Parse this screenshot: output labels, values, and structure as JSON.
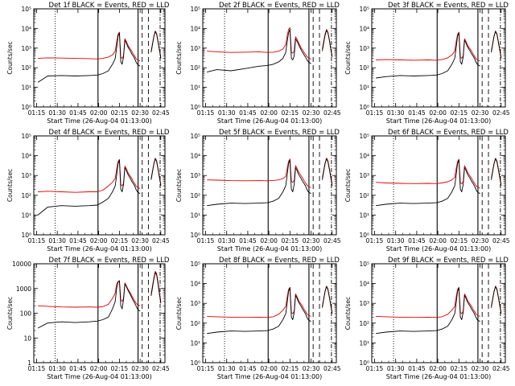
{
  "chart_data": {
    "type": "line",
    "grid_rows": 3,
    "grid_cols": 3,
    "ylabel": "Counts/sec",
    "xlabel": "Start Time (26-Aug-04 01:13:00)",
    "xticks": [
      "01:15",
      "01:30",
      "01:45",
      "02:00",
      "02:15",
      "02:30",
      "02:45"
    ],
    "xlim_min": [
      0,
      38
    ],
    "y_scale": "log",
    "series_colors": {
      "events": "#000000",
      "lld": "#e00000"
    },
    "event_lines": [
      {
        "t": 15.5,
        "style": "dotted"
      },
      {
        "t": 46.5,
        "style": "solid"
      },
      {
        "t": 75.5,
        "style": "solid"
      },
      {
        "t": 78.5,
        "style": "dashed"
      },
      {
        "t": 83.0,
        "style": "dashed"
      },
      {
        "t": 91.5,
        "style": "dash-dot"
      }
    ],
    "panels": [
      {
        "title": "Det 1f BLACK = Events, RED = LLD",
        "ylim_exp": [
          0,
          5
        ],
        "ytick_labels": [
          "10⁰",
          "10¹",
          "10²",
          "10³",
          "10⁴",
          "10⁵"
        ],
        "points_t": [
          3,
          10,
          20,
          30,
          40,
          46,
          50,
          54,
          57,
          59,
          60,
          61,
          62,
          63,
          64,
          65,
          66,
          67,
          68,
          69,
          70,
          71,
          72,
          73,
          74,
          75,
          77,
          79,
          81,
          83,
          85,
          87,
          88,
          89,
          90,
          91,
          92
        ],
        "events": [
          18,
          38,
          40,
          38,
          40,
          42,
          50,
          70,
          150,
          300,
          1000,
          4000,
          6000,
          200,
          150,
          350,
          2500,
          1800,
          1200,
          900,
          700,
          500,
          400,
          300,
          200,
          150,
          120,
          null,
          null,
          null,
          600,
          4000,
          7000,
          5000,
          2000,
          800,
          300
        ],
        "lld": [
          300,
          320,
          310,
          300,
          290,
          280,
          300,
          350,
          450,
          700,
          2000,
          5000,
          6500,
          350,
          300,
          400,
          3000,
          2200,
          1500,
          1100,
          900,
          700,
          500,
          400,
          300,
          250,
          220,
          null,
          null,
          null,
          700,
          4200,
          7500,
          5500,
          2200,
          900,
          350
        ]
      },
      {
        "title": "Det 2f BLACK = Events, RED = LLD",
        "ylim_exp": [
          0,
          5
        ],
        "ytick_labels": [
          "10⁰",
          "10¹",
          "10²",
          "10³",
          "10⁴",
          "10⁵"
        ],
        "points_t": [
          3,
          10,
          20,
          30,
          40,
          46,
          50,
          54,
          57,
          59,
          60,
          61,
          62,
          63,
          64,
          65,
          66,
          67,
          68,
          69,
          70,
          71,
          72,
          73,
          74,
          75,
          77,
          79,
          81,
          83,
          85,
          87,
          88,
          89,
          90,
          91,
          92
        ],
        "events": [
          60,
          80,
          70,
          90,
          120,
          130,
          150,
          200,
          300,
          600,
          2000,
          6000,
          9000,
          300,
          250,
          400,
          3000,
          2200,
          1600,
          1100,
          800,
          600,
          450,
          350,
          260,
          200,
          160,
          null,
          null,
          null,
          700,
          4500,
          8000,
          6000,
          2500,
          900,
          350
        ],
        "lld": [
          700,
          650,
          600,
          620,
          650,
          600,
          620,
          700,
          900,
          1500,
          4000,
          9000,
          11000,
          600,
          550,
          700,
          3800,
          2800,
          2000,
          1400,
          1000,
          800,
          600,
          480,
          380,
          320,
          280,
          null,
          null,
          null,
          900,
          5200,
          9000,
          6500,
          2700,
          1000,
          400
        ]
      },
      {
        "title": "Det 3f BLACK = Events, RED = LLD",
        "ylim_exp": [
          0,
          5
        ],
        "ytick_labels": [
          "10⁰",
          "10¹",
          "10²",
          "10³",
          "10⁴",
          "10⁵"
        ],
        "points_t": [
          3,
          10,
          20,
          30,
          40,
          46,
          50,
          54,
          57,
          59,
          60,
          61,
          62,
          63,
          64,
          65,
          66,
          67,
          68,
          69,
          70,
          71,
          72,
          73,
          74,
          75,
          77,
          79,
          81,
          83,
          85,
          87,
          88,
          89,
          90,
          91,
          92
        ],
        "events": [
          30,
          35,
          40,
          38,
          40,
          42,
          50,
          70,
          150,
          300,
          1000,
          4000,
          6000,
          200,
          150,
          350,
          2500,
          1800,
          1200,
          900,
          700,
          500,
          400,
          300,
          200,
          150,
          120,
          null,
          null,
          null,
          600,
          4000,
          7000,
          5000,
          2000,
          800,
          300
        ],
        "lld": [
          250,
          260,
          250,
          240,
          250,
          240,
          260,
          320,
          450,
          700,
          2000,
          5000,
          6500,
          350,
          300,
          400,
          3000,
          2200,
          1500,
          1100,
          900,
          700,
          500,
          400,
          300,
          250,
          220,
          null,
          null,
          null,
          700,
          4200,
          7500,
          5500,
          2200,
          900,
          350
        ]
      },
      {
        "title": "Det 4f BLACK = Events, RED = LLD",
        "ylim_exp": [
          0,
          5
        ],
        "ytick_labels": [
          "10⁰",
          "10¹",
          "10²",
          "10³",
          "10⁴",
          "10⁵"
        ],
        "points_t": [
          3,
          10,
          20,
          30,
          40,
          46,
          50,
          54,
          57,
          59,
          60,
          61,
          62,
          63,
          64,
          65,
          66,
          67,
          68,
          69,
          70,
          71,
          72,
          73,
          74,
          75,
          77,
          79,
          81,
          83,
          85,
          87,
          88,
          89,
          90,
          91,
          92
        ],
        "events": [
          10,
          25,
          30,
          28,
          30,
          32,
          45,
          70,
          150,
          300,
          1000,
          4000,
          6000,
          200,
          150,
          350,
          2500,
          1800,
          1200,
          900,
          700,
          500,
          400,
          300,
          200,
          150,
          120,
          null,
          null,
          null,
          600,
          4000,
          7000,
          5000,
          2000,
          800,
          300
        ],
        "lld": [
          150,
          160,
          150,
          140,
          150,
          150,
          180,
          300,
          450,
          700,
          2000,
          5000,
          6500,
          350,
          300,
          400,
          3000,
          2200,
          1500,
          1100,
          900,
          700,
          500,
          400,
          300,
          250,
          220,
          null,
          null,
          null,
          700,
          4200,
          7500,
          5500,
          2200,
          900,
          350
        ]
      },
      {
        "title": "Det 5f BLACK = Events, RED = LLD",
        "ylim_exp": [
          0,
          5
        ],
        "ytick_labels": [
          "10⁰",
          "10¹",
          "10²",
          "10³",
          "10⁴",
          "10⁵"
        ],
        "points_t": [
          3,
          10,
          20,
          30,
          40,
          46,
          50,
          54,
          57,
          59,
          60,
          61,
          62,
          63,
          64,
          65,
          66,
          67,
          68,
          69,
          70,
          71,
          72,
          73,
          74,
          75,
          77,
          79,
          81,
          83,
          85,
          87,
          88,
          89,
          90,
          91,
          92
        ],
        "events": [
          30,
          35,
          40,
          38,
          40,
          42,
          50,
          70,
          150,
          300,
          1000,
          4000,
          6000,
          200,
          150,
          350,
          2500,
          1800,
          1200,
          900,
          700,
          500,
          400,
          300,
          200,
          150,
          120,
          null,
          null,
          null,
          600,
          4000,
          7000,
          5000,
          2000,
          800,
          300
        ],
        "lld": [
          600,
          580,
          550,
          540,
          550,
          540,
          560,
          600,
          700,
          900,
          2200,
          5200,
          6800,
          500,
          450,
          550,
          3200,
          2300,
          1600,
          1200,
          950,
          750,
          550,
          430,
          330,
          280,
          240,
          null,
          null,
          null,
          750,
          4300,
          7600,
          5600,
          2300,
          950,
          380
        ]
      },
      {
        "title": "Det 6f BLACK = Events, RED = LLD",
        "ylim_exp": [
          0,
          5
        ],
        "ytick_labels": [
          "10⁰",
          "10¹",
          "10²",
          "10³",
          "10⁴",
          "10⁵"
        ],
        "points_t": [
          3,
          10,
          20,
          30,
          40,
          46,
          50,
          54,
          57,
          59,
          60,
          61,
          62,
          63,
          64,
          65,
          66,
          67,
          68,
          69,
          70,
          71,
          72,
          73,
          74,
          75,
          77,
          79,
          81,
          83,
          85,
          87,
          88,
          89,
          90,
          91,
          92
        ],
        "events": [
          30,
          35,
          40,
          38,
          40,
          42,
          50,
          70,
          150,
          300,
          1000,
          4000,
          6000,
          200,
          150,
          350,
          2500,
          1800,
          1200,
          900,
          700,
          500,
          400,
          300,
          200,
          150,
          120,
          null,
          null,
          null,
          600,
          4000,
          7000,
          5000,
          2000,
          800,
          300
        ],
        "lld": [
          450,
          420,
          400,
          390,
          400,
          390,
          420,
          480,
          600,
          800,
          2100,
          5100,
          6600,
          420,
          380,
          480,
          3100,
          2250,
          1550,
          1150,
          920,
          720,
          520,
          410,
          310,
          260,
          230,
          null,
          null,
          null,
          720,
          4250,
          7500,
          5500,
          2250,
          920,
          360
        ]
      },
      {
        "title": "Det 7f BLACK = Events, RED = LLD",
        "ylim_exp": [
          0,
          4
        ],
        "ytick_labels": [
          "1",
          "10",
          "100",
          "1000",
          "10000"
        ],
        "points_t": [
          3,
          10,
          20,
          30,
          40,
          46,
          50,
          54,
          57,
          59,
          60,
          61,
          62,
          63,
          64,
          65,
          66,
          67,
          68,
          69,
          70,
          71,
          72,
          73,
          74,
          75,
          77,
          79,
          81,
          83,
          85,
          87,
          88,
          89,
          90,
          91,
          92
        ],
        "events": [
          25,
          40,
          45,
          42,
          45,
          48,
          55,
          70,
          150,
          300,
          1000,
          1800,
          2000,
          200,
          150,
          350,
          1500,
          1200,
          900,
          700,
          550,
          420,
          330,
          260,
          200,
          150,
          120,
          null,
          null,
          null,
          500,
          2500,
          4500,
          3500,
          1500,
          600,
          250
        ],
        "lld": [
          200,
          190,
          180,
          175,
          180,
          175,
          185,
          230,
          400,
          650,
          1500,
          1900,
          2100,
          350,
          300,
          400,
          1700,
          1300,
          1000,
          800,
          650,
          500,
          400,
          320,
          260,
          220,
          200,
          null,
          null,
          null,
          600,
          2800,
          5000,
          4000,
          1800,
          700,
          300
        ]
      },
      {
        "title": "Det 8f BLACK = Events, RED = LLD",
        "ylim_exp": [
          0,
          5
        ],
        "ytick_labels": [
          "10⁰",
          "10¹",
          "10²",
          "10³",
          "10⁴",
          "10⁵"
        ],
        "points_t": [
          3,
          10,
          20,
          30,
          40,
          46,
          50,
          54,
          57,
          59,
          60,
          61,
          62,
          63,
          64,
          65,
          66,
          67,
          68,
          69,
          70,
          71,
          72,
          73,
          74,
          75,
          77,
          79,
          81,
          83,
          85,
          87,
          88,
          89,
          90,
          91,
          92
        ],
        "events": [
          30,
          35,
          40,
          38,
          40,
          42,
          50,
          70,
          150,
          300,
          1000,
          4000,
          6000,
          200,
          150,
          350,
          2500,
          1800,
          1200,
          900,
          700,
          500,
          400,
          300,
          200,
          150,
          120,
          null,
          null,
          null,
          600,
          4000,
          7000,
          5000,
          2000,
          800,
          300
        ],
        "lld": [
          220,
          210,
          200,
          195,
          200,
          195,
          210,
          280,
          450,
          700,
          2000,
          5000,
          6500,
          350,
          300,
          400,
          3000,
          2200,
          1500,
          1100,
          900,
          700,
          500,
          400,
          300,
          250,
          220,
          null,
          null,
          null,
          700,
          4200,
          7500,
          5500,
          2200,
          900,
          350
        ]
      },
      {
        "title": "Det 9f BLACK = Events, RED = LLD",
        "ylim_exp": [
          0,
          5
        ],
        "ytick_labels": [
          "10⁰",
          "10¹",
          "10²",
          "10³",
          "10⁴",
          "10⁵"
        ],
        "points_t": [
          3,
          10,
          20,
          30,
          40,
          46,
          50,
          54,
          57,
          59,
          60,
          61,
          62,
          63,
          64,
          65,
          66,
          67,
          68,
          69,
          70,
          71,
          72,
          73,
          74,
          75,
          77,
          79,
          81,
          83,
          85,
          87,
          88,
          89,
          90,
          91,
          92
        ],
        "events": [
          30,
          35,
          40,
          38,
          40,
          42,
          50,
          70,
          150,
          300,
          1000,
          4000,
          6000,
          200,
          150,
          350,
          2500,
          1800,
          1200,
          900,
          700,
          500,
          400,
          300,
          200,
          150,
          120,
          null,
          null,
          null,
          600,
          4000,
          7000,
          5000,
          2000,
          800,
          300
        ],
        "lld": [
          220,
          210,
          200,
          195,
          200,
          195,
          210,
          280,
          450,
          700,
          2000,
          5000,
          6500,
          350,
          300,
          400,
          3000,
          2200,
          1500,
          1100,
          900,
          700,
          500,
          400,
          300,
          250,
          220,
          null,
          null,
          null,
          700,
          4200,
          7500,
          5500,
          2200,
          900,
          350
        ]
      }
    ]
  }
}
